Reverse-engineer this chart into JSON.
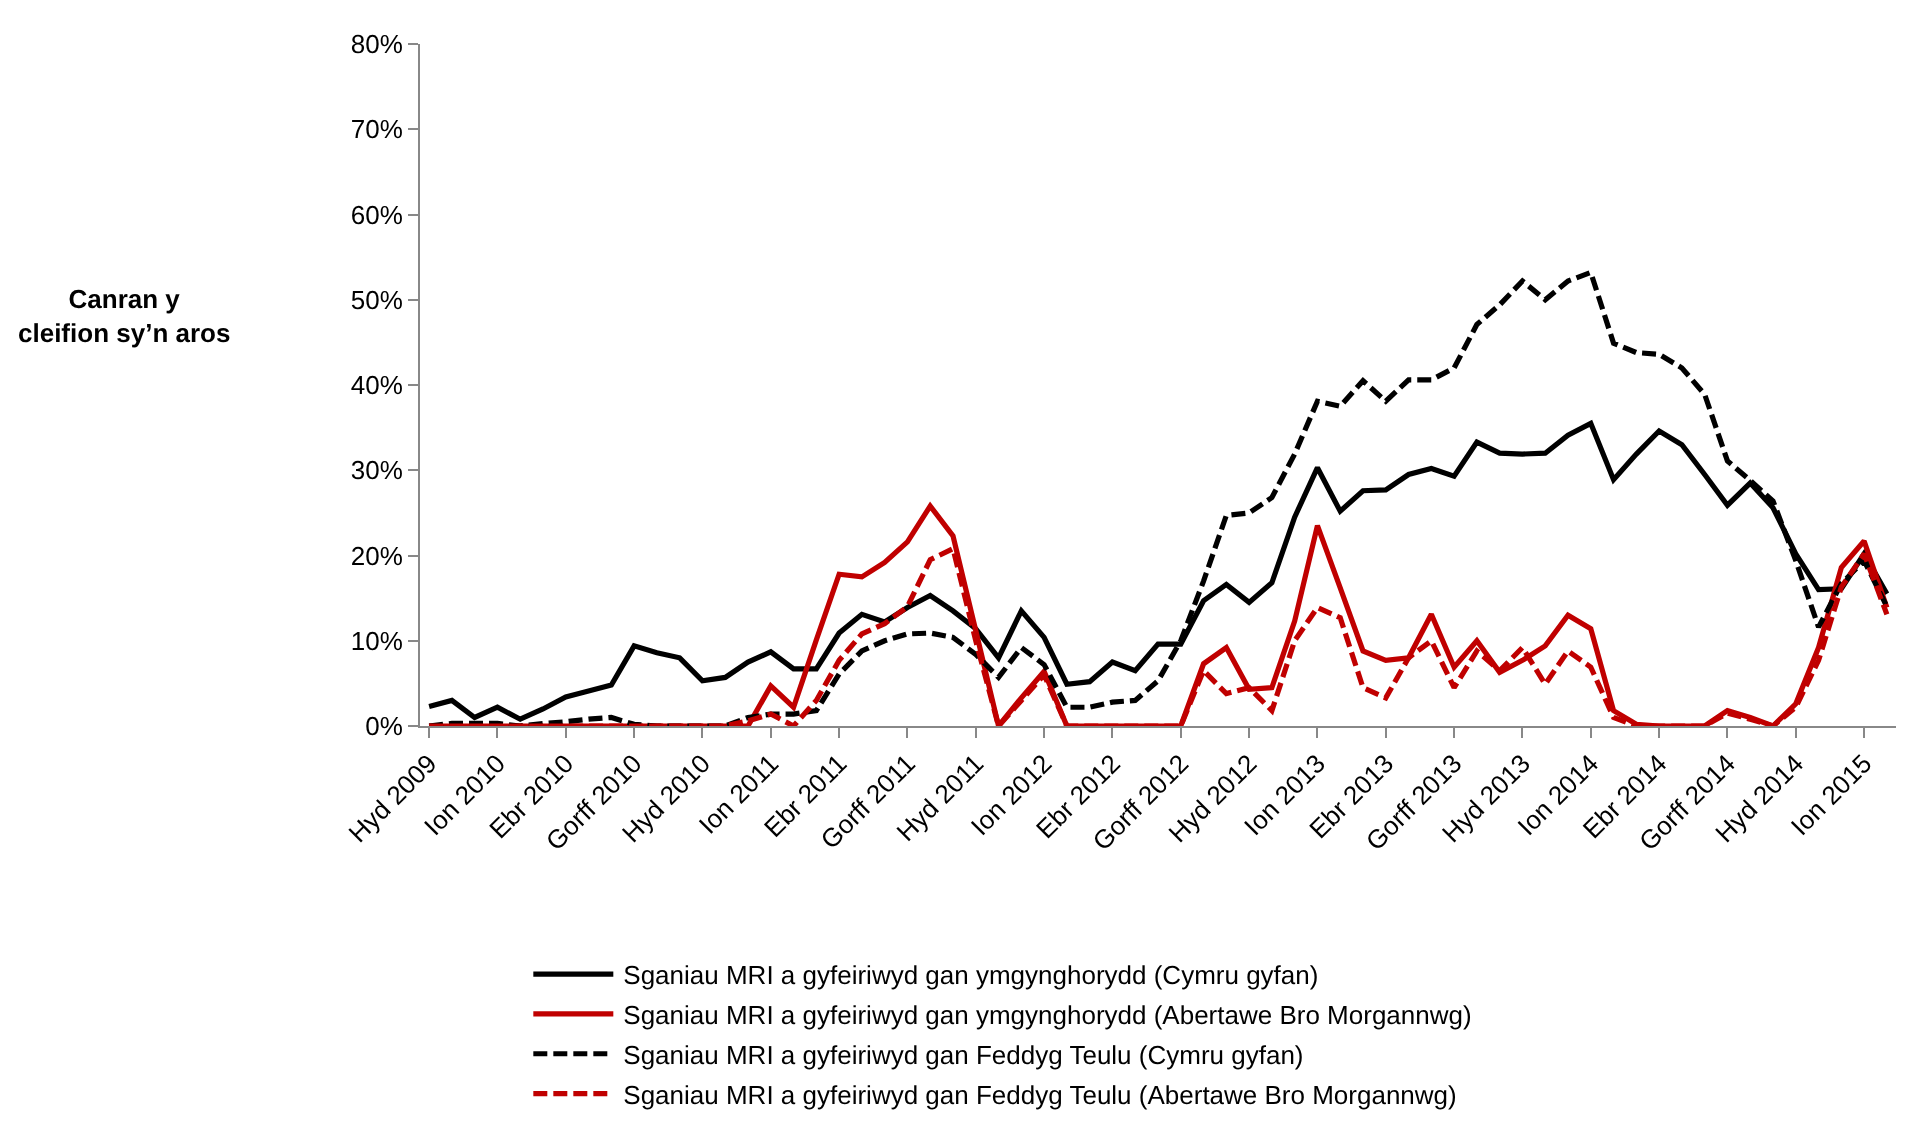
{
  "chart_data": {
    "type": "line",
    "ylabel": "Canran y\ncleifion sy’n aros",
    "categories": [
      "Hyd 2009",
      null,
      null,
      "Ion 2010",
      null,
      null,
      "Ebr 2010",
      null,
      null,
      "Gorff 2010",
      null,
      null,
      "Hyd 2010",
      null,
      null,
      "Ion 2011",
      null,
      null,
      "Ebr 2011",
      null,
      null,
      "Gorff 2011",
      null,
      null,
      "Hyd 2011",
      null,
      null,
      "Ion 2012",
      null,
      null,
      "Ebr 2012",
      null,
      null,
      "Gorff 2012",
      null,
      null,
      "Hyd 2012",
      null,
      null,
      "Ion 2013",
      null,
      null,
      "Ebr 2013",
      null,
      null,
      "Gorff 2013",
      null,
      null,
      "Hyd 2013",
      null,
      null,
      "Ion 2014",
      null,
      null,
      "Ebr 2014",
      null,
      null,
      "Gorff 2014",
      null,
      null,
      "Hyd 2014",
      null,
      null,
      "Ion 2015",
      null
    ],
    "series": [
      {
        "name": "Sganiau MRI a gyfeiriwyd gan ymgynghorydd (Cymru gyfan)",
        "color": "#000000",
        "line_style": "solid",
        "values": [
          2.3,
          3.0,
          1.0,
          2.2,
          0.8,
          2.0,
          3.4,
          4.1,
          4.8,
          9.4,
          8.6,
          8.0,
          5.3,
          5.7,
          7.5,
          8.7,
          6.7,
          6.7,
          10.9,
          13.1,
          12.2,
          13.9,
          15.3,
          13.5,
          11.4,
          8.0,
          13.5,
          10.4,
          4.9,
          5.2,
          7.5,
          6.5,
          9.6,
          9.6,
          14.7,
          16.6,
          14.5,
          16.8,
          24.5,
          30.3,
          25.2,
          27.6,
          27.7,
          29.5,
          30.2,
          29.3,
          33.3,
          32.0,
          31.9,
          32.0,
          34.1,
          35.5,
          28.9,
          31.9,
          34.6,
          33.0,
          29.5,
          25.9,
          28.5,
          25.6,
          20.2,
          16.0,
          16.1,
          20.2,
          15.5
        ]
      },
      {
        "name": "Sganiau MRI a gyfeiriwyd gan ymgynghorydd (Abertawe Bro Morgannwg)",
        "color": "#c00000",
        "line_style": "solid",
        "values": [
          0,
          0,
          0,
          0,
          0,
          0,
          0,
          0,
          0,
          0,
          0,
          0,
          0,
          0,
          0,
          4.7,
          2.2,
          10.1,
          17.8,
          17.5,
          19.2,
          21.6,
          25.8,
          22.3,
          11.2,
          0,
          3.3,
          6.4,
          0,
          0,
          0,
          0,
          0,
          0,
          7.3,
          9.2,
          4.3,
          4.5,
          12.3,
          23.5,
          16.2,
          8.8,
          7.7,
          8.0,
          13.1,
          6.9,
          10.0,
          6.3,
          7.7,
          9.4,
          13.0,
          11.4,
          1.8,
          0.2,
          0,
          0,
          0,
          1.8,
          1.0,
          0,
          2.6,
          9.2,
          18.6,
          21.7,
          13.9
        ]
      },
      {
        "name": "Sganiau MRI a gyfeiriwyd gan Feddyg Teulu (Cymru gyfan)",
        "color": "#000000",
        "line_style": "dashed",
        "values": [
          0,
          0.3,
          0.3,
          0.3,
          0,
          0.3,
          0.5,
          0.8,
          1.0,
          0.2,
          0,
          0,
          0,
          0,
          1.0,
          1.4,
          1.4,
          1.8,
          6.1,
          8.8,
          10.0,
          10.8,
          10.9,
          10.4,
          8.4,
          5.7,
          9.2,
          7.2,
          2.2,
          2.2,
          2.8,
          3.0,
          5.3,
          10.0,
          17.0,
          24.7,
          25.0,
          26.8,
          31.9,
          38.1,
          37.5,
          40.5,
          38.1,
          40.6,
          40.6,
          42.0,
          47.1,
          49.4,
          52.2,
          50.0,
          52.2,
          53.2,
          44.9,
          43.8,
          43.6,
          42.0,
          38.9,
          31.1,
          28.8,
          26.4,
          19.4,
          11.6,
          16.7,
          19.4,
          14.0
        ]
      },
      {
        "name": "Sganiau MRI a gyfeiriwyd gan Feddyg Teulu (Abertawe Bro Morgannwg)",
        "color": "#c00000",
        "line_style": "dashed",
        "values": [
          0,
          0,
          0,
          0,
          0,
          0,
          0,
          0,
          0,
          0,
          0,
          0,
          0,
          0,
          0.6,
          1.4,
          0,
          3.0,
          7.7,
          10.8,
          12.0,
          14.0,
          19.5,
          20.8,
          10.0,
          0,
          3.0,
          6.0,
          0,
          0,
          0,
          0,
          0,
          0,
          6.5,
          3.8,
          4.5,
          1.8,
          10.0,
          13.9,
          12.7,
          4.5,
          3.3,
          8.0,
          10.0,
          4.5,
          8.8,
          6.5,
          9.2,
          4.9,
          8.8,
          6.9,
          1.0,
          0,
          0,
          0,
          0,
          1.5,
          0.8,
          0,
          2.2,
          7.7,
          16.3,
          20.2,
          13.1
        ]
      }
    ],
    "ylim": [
      0,
      80
    ],
    "yticks": [
      {
        "value": 0,
        "label": "0%"
      },
      {
        "value": 10,
        "label": "10%"
      },
      {
        "value": 20,
        "label": "20%"
      },
      {
        "value": 30,
        "label": "30%"
      },
      {
        "value": 40,
        "label": "40%"
      },
      {
        "value": 50,
        "label": "50%"
      },
      {
        "value": 60,
        "label": "60%"
      },
      {
        "value": 70,
        "label": "70%"
      },
      {
        "value": 80,
        "label": "80%"
      }
    ],
    "legend": "bottom",
    "marker": "none"
  }
}
